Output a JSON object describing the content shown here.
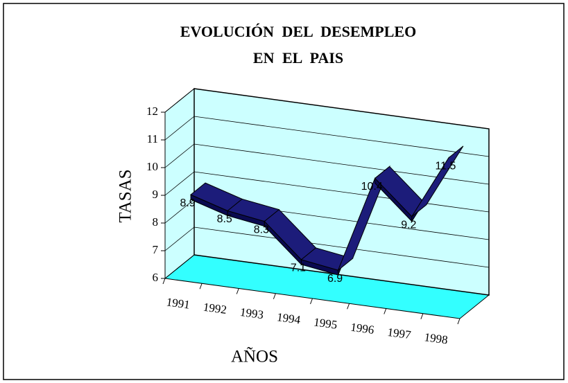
{
  "chart_data": {
    "type": "line3d",
    "title": [
      "EVOLUCIÓN DEL DESEMPLEO",
      "EN EL PAIS"
    ],
    "y_label": "TASAS",
    "x_label": "AÑOS",
    "categories": [
      "1991",
      "1992",
      "1993",
      "1994",
      "1995",
      "1996",
      "1997",
      "1998"
    ],
    "values": [
      8.9,
      8.5,
      8.3,
      7.1,
      6.9,
      10.4,
      9.2,
      11.5
    ],
    "color": "#1c1c7a",
    "ylim": [
      6,
      12
    ],
    "yticks": [
      6,
      7,
      8,
      9,
      10,
      11,
      12
    ],
    "grid": true
  }
}
